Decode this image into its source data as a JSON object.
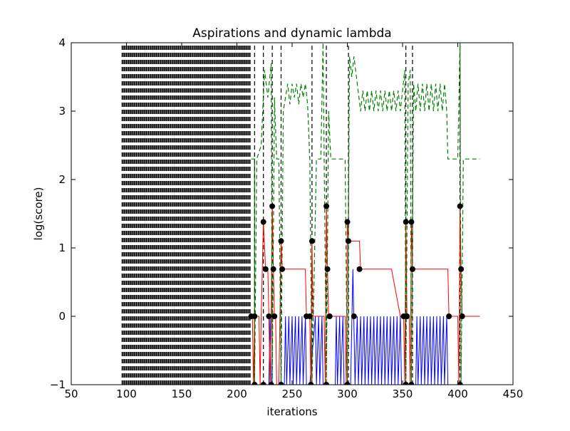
{
  "chart_data": {
    "type": "line",
    "title": "Aspirations and dynamic lambda",
    "xlabel": "iterations",
    "ylabel": "log(score)",
    "xlim": [
      50,
      450
    ],
    "ylim": [
      -1,
      4
    ],
    "xticks": [
      50,
      100,
      150,
      200,
      250,
      300,
      350,
      400,
      450
    ],
    "yticks": [
      -1,
      0,
      1,
      2,
      3,
      4
    ],
    "xtick_labels": [
      "50",
      "100",
      "150",
      "200",
      "250",
      "300",
      "350",
      "400",
      "450"
    ],
    "ytick_labels": [
      "−1",
      "0",
      "1",
      "2",
      "3",
      "4"
    ],
    "grid": false,
    "legend": "none",
    "colors": {
      "red_series": "#ff0000",
      "blue_series": "#0000ff",
      "green_dashed": "#008000",
      "black_dashed": "#000000",
      "markers": "#000000"
    },
    "black_dashed_verticals": {
      "dense_block": {
        "x_start": 96,
        "x_end": 212,
        "step": 1,
        "y_from": -1,
        "y_to": 4
      },
      "lines_x": [
        216,
        224,
        232,
        240,
        268,
        281,
        301,
        353,
        359,
        402
      ]
    },
    "red_line": [
      [
        212,
        0
      ],
      [
        214,
        0
      ],
      [
        215,
        -1
      ],
      [
        216,
        0
      ],
      [
        218,
        0
      ],
      [
        220,
        0
      ],
      [
        221,
        -1
      ],
      [
        222,
        0
      ],
      [
        224,
        1.38
      ],
      [
        226,
        0.69
      ],
      [
        228,
        0.69
      ],
      [
        229,
        0
      ],
      [
        230,
        -1
      ],
      [
        231,
        0
      ],
      [
        232,
        1.61
      ],
      [
        233,
        0.69
      ],
      [
        234,
        0
      ],
      [
        235,
        0
      ],
      [
        236,
        -1
      ],
      [
        238,
        -1
      ],
      [
        240,
        1.1
      ],
      [
        241,
        0.69
      ],
      [
        262,
        0.69
      ],
      [
        263,
        0
      ],
      [
        266,
        0
      ],
      [
        267,
        -1
      ],
      [
        268,
        1.1
      ],
      [
        269,
        0
      ],
      [
        279,
        0
      ],
      [
        280,
        -1
      ],
      [
        281,
        1.61
      ],
      [
        282,
        0.69
      ],
      [
        283,
        0
      ],
      [
        298,
        0
      ],
      [
        299,
        -1
      ],
      [
        300,
        1.38
      ],
      [
        301,
        1.1
      ],
      [
        311,
        1.1
      ],
      [
        312,
        0.69
      ],
      [
        340,
        0.69
      ],
      [
        348,
        0
      ],
      [
        351,
        0
      ],
      [
        352,
        -1
      ],
      [
        353,
        1.38
      ],
      [
        354,
        0
      ],
      [
        356,
        0
      ],
      [
        357,
        -1
      ],
      [
        358,
        1.38
      ],
      [
        359,
        0.69
      ],
      [
        391,
        0.69
      ],
      [
        392,
        0
      ],
      [
        400,
        0
      ],
      [
        401,
        -1
      ],
      [
        402,
        1.61
      ],
      [
        403,
        0.69
      ],
      [
        404,
        0
      ],
      [
        420,
        0
      ]
    ],
    "blue_line": [
      [
        212,
        -1
      ],
      [
        229,
        -1
      ],
      [
        230,
        0
      ],
      [
        231,
        -1
      ],
      [
        243,
        -1
      ],
      [
        244,
        0
      ],
      [
        245,
        -1
      ],
      [
        247,
        0
      ],
      [
        248,
        -1
      ],
      [
        250,
        0
      ],
      [
        251,
        -1
      ],
      [
        253,
        0
      ],
      [
        254,
        -1
      ],
      [
        256,
        0
      ],
      [
        257,
        -1
      ],
      [
        259,
        0
      ],
      [
        260,
        -1
      ],
      [
        262,
        0
      ],
      [
        263,
        -1
      ],
      [
        266,
        -1
      ],
      [
        271,
        0
      ],
      [
        272,
        -1
      ],
      [
        274,
        0
      ],
      [
        275,
        -1
      ],
      [
        277,
        0
      ],
      [
        278,
        -1
      ],
      [
        289,
        -1
      ],
      [
        290,
        0
      ],
      [
        291,
        -1
      ],
      [
        293,
        0
      ],
      [
        294,
        -1
      ],
      [
        296,
        0
      ],
      [
        297,
        -1
      ],
      [
        303,
        -1
      ],
      [
        305,
        0.69
      ],
      [
        307,
        -1
      ],
      [
        309,
        0
      ],
      [
        310,
        -1
      ],
      [
        312,
        0
      ],
      [
        313,
        -1
      ],
      [
        315,
        0
      ],
      [
        316,
        -1
      ],
      [
        318,
        0
      ],
      [
        319,
        -1
      ],
      [
        321,
        0
      ],
      [
        322,
        -1
      ],
      [
        324,
        0
      ],
      [
        325,
        -1
      ],
      [
        327,
        0
      ],
      [
        328,
        -1
      ],
      [
        330,
        0
      ],
      [
        331,
        -1
      ],
      [
        333,
        0
      ],
      [
        334,
        -1
      ],
      [
        336,
        0
      ],
      [
        337,
        -1
      ],
      [
        339,
        0
      ],
      [
        340,
        -1
      ],
      [
        342,
        0
      ],
      [
        343,
        -1
      ],
      [
        345,
        0
      ],
      [
        346,
        -1
      ],
      [
        348,
        0
      ],
      [
        349,
        -1
      ],
      [
        362,
        -1
      ],
      [
        363,
        0
      ],
      [
        364,
        -1
      ],
      [
        366,
        0
      ],
      [
        367,
        -1
      ],
      [
        369,
        0
      ],
      [
        370,
        -1
      ],
      [
        372,
        0
      ],
      [
        373,
        -1
      ],
      [
        375,
        0
      ],
      [
        376,
        -1
      ],
      [
        378,
        0
      ],
      [
        379,
        -1
      ],
      [
        381,
        0
      ],
      [
        382,
        -1
      ],
      [
        384,
        0
      ],
      [
        385,
        -1
      ],
      [
        387,
        0
      ],
      [
        388,
        -1
      ],
      [
        390,
        0
      ],
      [
        391,
        -1
      ],
      [
        420,
        -1
      ]
    ],
    "green_dashed_line": [
      [
        213,
        2.3
      ],
      [
        216,
        2.3
      ],
      [
        216,
        -1
      ],
      [
        218,
        2.3
      ],
      [
        222,
        2.5
      ],
      [
        225,
        3.6
      ],
      [
        228,
        3.2
      ],
      [
        231,
        3.7
      ],
      [
        232,
        -1
      ],
      [
        234,
        3.2
      ],
      [
        236,
        2.3
      ],
      [
        238,
        2.3
      ],
      [
        240,
        -1
      ],
      [
        242,
        3.0
      ],
      [
        244,
        3.2
      ],
      [
        246,
        3.4
      ],
      [
        248,
        3.1
      ],
      [
        250,
        3.4
      ],
      [
        252,
        3.2
      ],
      [
        254,
        3.4
      ],
      [
        256,
        3.1
      ],
      [
        258,
        3.4
      ],
      [
        260,
        3.2
      ],
      [
        262,
        3.4
      ],
      [
        264,
        3.1
      ],
      [
        266,
        2.3
      ],
      [
        268,
        -1
      ],
      [
        272,
        2.3
      ],
      [
        276,
        2.3
      ],
      [
        278,
        4.0
      ],
      [
        281,
        -1
      ],
      [
        283,
        3.0
      ],
      [
        285,
        2.3
      ],
      [
        298,
        2.3
      ],
      [
        300,
        -1
      ],
      [
        302,
        3.8
      ],
      [
        304,
        3.5
      ],
      [
        306,
        3.8
      ],
      [
        309,
        3.4
      ],
      [
        312,
        3.0
      ],
      [
        314,
        3.3
      ],
      [
        316,
        3.0
      ],
      [
        318,
        3.3
      ],
      [
        320,
        3.0
      ],
      [
        322,
        3.3
      ],
      [
        324,
        3.0
      ],
      [
        326,
        3.3
      ],
      [
        328,
        3.0
      ],
      [
        330,
        3.3
      ],
      [
        332,
        3.0
      ],
      [
        334,
        3.3
      ],
      [
        336,
        3.0
      ],
      [
        338,
        3.3
      ],
      [
        340,
        3.0
      ],
      [
        342,
        3.3
      ],
      [
        344,
        3.0
      ],
      [
        346,
        3.3
      ],
      [
        348,
        3.0
      ],
      [
        350,
        3.3
      ],
      [
        352,
        3.6
      ],
      [
        353,
        -1
      ],
      [
        355,
        3.4
      ],
      [
        357,
        3.6
      ],
      [
        358,
        -1
      ],
      [
        360,
        3.4
      ],
      [
        362,
        3.0
      ],
      [
        364,
        3.4
      ],
      [
        366,
        3.0
      ],
      [
        368,
        3.4
      ],
      [
        370,
        3.0
      ],
      [
        372,
        3.4
      ],
      [
        374,
        3.0
      ],
      [
        376,
        3.4
      ],
      [
        378,
        3.0
      ],
      [
        380,
        3.4
      ],
      [
        382,
        3.0
      ],
      [
        384,
        3.4
      ],
      [
        386,
        3.0
      ],
      [
        388,
        3.4
      ],
      [
        390,
        3.0
      ],
      [
        391,
        2.3
      ],
      [
        400,
        2.3
      ],
      [
        402,
        4.0
      ],
      [
        403,
        -1
      ],
      [
        405,
        2.3
      ],
      [
        420,
        2.3
      ]
    ],
    "black_markers": [
      [
        213,
        0
      ],
      [
        216,
        0
      ],
      [
        216,
        -1
      ],
      [
        224,
        1.38
      ],
      [
        224,
        -1
      ],
      [
        226,
        0.69
      ],
      [
        229,
        0
      ],
      [
        231,
        -1
      ],
      [
        232,
        1.61
      ],
      [
        233,
        0.69
      ],
      [
        234,
        0
      ],
      [
        240,
        -1
      ],
      [
        240,
        1.1
      ],
      [
        241,
        0.69
      ],
      [
        263,
        0
      ],
      [
        266,
        0
      ],
      [
        267,
        -1
      ],
      [
        268,
        1.1
      ],
      [
        281,
        -1
      ],
      [
        281,
        1.61
      ],
      [
        282,
        0.69
      ],
      [
        284,
        0
      ],
      [
        300,
        -1
      ],
      [
        300,
        1.38
      ],
      [
        301,
        1.1
      ],
      [
        306,
        0
      ],
      [
        311,
        0.69
      ],
      [
        351,
        0
      ],
      [
        353,
        1.38
      ],
      [
        353,
        -1
      ],
      [
        354,
        0
      ],
      [
        358,
        1.38
      ],
      [
        358,
        -1
      ],
      [
        359,
        0.69
      ],
      [
        392,
        0
      ],
      [
        402,
        1.61
      ],
      [
        402,
        -1
      ],
      [
        403,
        0.69
      ],
      [
        404,
        0
      ]
    ]
  }
}
